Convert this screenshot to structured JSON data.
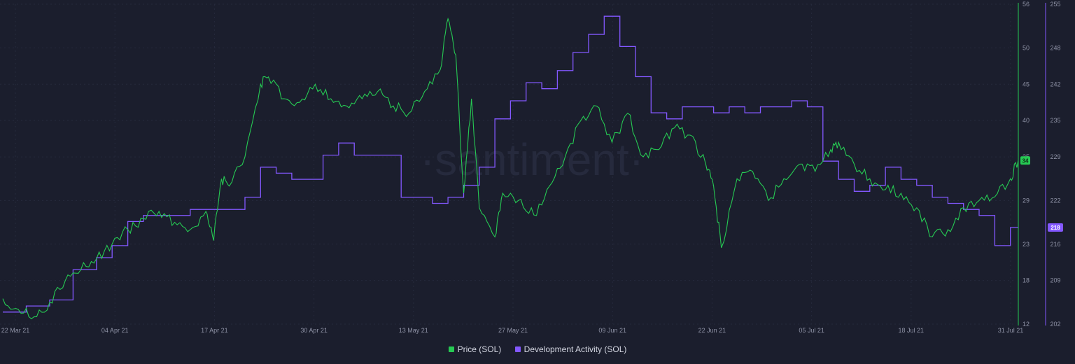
{
  "chart_data": {
    "type": "line",
    "watermark": "·santiment·",
    "colors": {
      "background": "#1b1e2d",
      "price": "#26c953",
      "dev": "#8358ff",
      "grid": "#262a3c"
    },
    "x_ticks": [
      "22 Mar 21",
      "04 Apr 21",
      "17 Apr 21",
      "30 Apr 21",
      "13 May 21",
      "27 May 21",
      "09 Jun 21",
      "22 Jun 21",
      "05 Jul 21",
      "18 Jul 21",
      "31 Jul 21"
    ],
    "y_left_ticks": [
      "56",
      "50",
      "45",
      "40",
      "35",
      "29",
      "23",
      "18",
      "12"
    ],
    "y_right_ticks": [
      "255",
      "248",
      "242",
      "235",
      "229",
      "222",
      "216",
      "209",
      "202"
    ],
    "ylim_price": [
      12,
      56
    ],
    "ylim_dev": [
      202,
      255
    ],
    "grid": true,
    "legend_position": "bottom-center",
    "current_price_label": "34",
    "current_dev_label": "218",
    "series": [
      {
        "name": "Price (SOL)",
        "axis": "left",
        "x": [
          "2021-03-22",
          "2021-03-24",
          "2021-03-26",
          "2021-03-28",
          "2021-03-30",
          "2021-04-01",
          "2021-04-03",
          "2021-04-05",
          "2021-04-07",
          "2021-04-09",
          "2021-04-11",
          "2021-04-13",
          "2021-04-15",
          "2021-04-17",
          "2021-04-18",
          "2021-04-19",
          "2021-04-20",
          "2021-04-22",
          "2021-04-24",
          "2021-04-25",
          "2021-04-27",
          "2021-04-29",
          "2021-05-01",
          "2021-05-03",
          "2021-05-05",
          "2021-05-07",
          "2021-05-09",
          "2021-05-11",
          "2021-05-13",
          "2021-05-15",
          "2021-05-17",
          "2021-05-18",
          "2021-05-19",
          "2021-05-20",
          "2021-05-21",
          "2021-05-22",
          "2021-05-24",
          "2021-05-25",
          "2021-05-27",
          "2021-05-29",
          "2021-05-31",
          "2021-06-02",
          "2021-06-04",
          "2021-06-06",
          "2021-06-08",
          "2021-06-10",
          "2021-06-12",
          "2021-06-14",
          "2021-06-16",
          "2021-06-18",
          "2021-06-20",
          "2021-06-21",
          "2021-06-22",
          "2021-06-24",
          "2021-06-26",
          "2021-06-28",
          "2021-06-30",
          "2021-07-02",
          "2021-07-04",
          "2021-07-06",
          "2021-07-07",
          "2021-07-09",
          "2021-07-11",
          "2021-07-13",
          "2021-07-15",
          "2021-07-17",
          "2021-07-19",
          "2021-07-21",
          "2021-07-23",
          "2021-07-25",
          "2021-07-27",
          "2021-07-29",
          "2021-07-30"
        ],
        "values": [
          15.5,
          14,
          13,
          15,
          18,
          19.5,
          21,
          23,
          25,
          26.5,
          27.5,
          26,
          25,
          27.5,
          23.5,
          32,
          31,
          35,
          45,
          46,
          43,
          42.5,
          45,
          43,
          42,
          43,
          44,
          42,
          41,
          44,
          47,
          54,
          49,
          30,
          43,
          28,
          24,
          30,
          29,
          27,
          31,
          35,
          40,
          42,
          37,
          41,
          35,
          36,
          39,
          38,
          34,
          31,
          22.5,
          32,
          33,
          29,
          32,
          34,
          33,
          36,
          37,
          34,
          32,
          30.5,
          30,
          28,
          24,
          25,
          28,
          29,
          29.5,
          32,
          34.5
        ]
      },
      {
        "name": "Development Activity (SOL)",
        "axis": "right",
        "x": [
          "2021-03-22",
          "2021-03-25",
          "2021-03-28",
          "2021-03-31",
          "2021-04-03",
          "2021-04-05",
          "2021-04-07",
          "2021-04-09",
          "2021-04-11",
          "2021-04-13",
          "2021-04-15",
          "2021-04-17",
          "2021-04-20",
          "2021-04-22",
          "2021-04-24",
          "2021-04-26",
          "2021-04-28",
          "2021-04-30",
          "2021-05-02",
          "2021-05-04",
          "2021-05-06",
          "2021-05-08",
          "2021-05-10",
          "2021-05-12",
          "2021-05-14",
          "2021-05-16",
          "2021-05-18",
          "2021-05-20",
          "2021-05-22",
          "2021-05-24",
          "2021-05-26",
          "2021-05-28",
          "2021-05-30",
          "2021-06-01",
          "2021-06-03",
          "2021-06-05",
          "2021-06-07",
          "2021-06-09",
          "2021-06-11",
          "2021-06-13",
          "2021-06-15",
          "2021-06-17",
          "2021-06-19",
          "2021-06-21",
          "2021-06-23",
          "2021-06-25",
          "2021-06-27",
          "2021-06-29",
          "2021-07-01",
          "2021-07-03",
          "2021-07-05",
          "2021-07-07",
          "2021-07-09",
          "2021-07-11",
          "2021-07-13",
          "2021-07-15",
          "2021-07-17",
          "2021-07-19",
          "2021-07-21",
          "2021-07-23",
          "2021-07-25",
          "2021-07-27",
          "2021-07-29",
          "2021-07-30"
        ],
        "values": [
          204,
          205,
          206,
          211,
          213,
          215,
          219,
          220,
          220,
          220,
          221,
          221,
          221,
          223,
          228,
          227,
          226,
          226,
          230,
          232,
          230,
          230,
          230,
          223,
          223,
          222,
          223,
          225,
          228,
          236,
          239,
          242,
          241,
          244,
          247,
          250,
          253,
          248,
          243,
          237,
          236,
          238,
          238,
          237,
          238,
          237,
          238,
          238,
          239,
          238,
          229,
          226,
          224,
          225,
          228,
          226,
          225,
          223,
          222,
          221,
          220,
          215,
          218,
          218
        ]
      }
    ]
  }
}
